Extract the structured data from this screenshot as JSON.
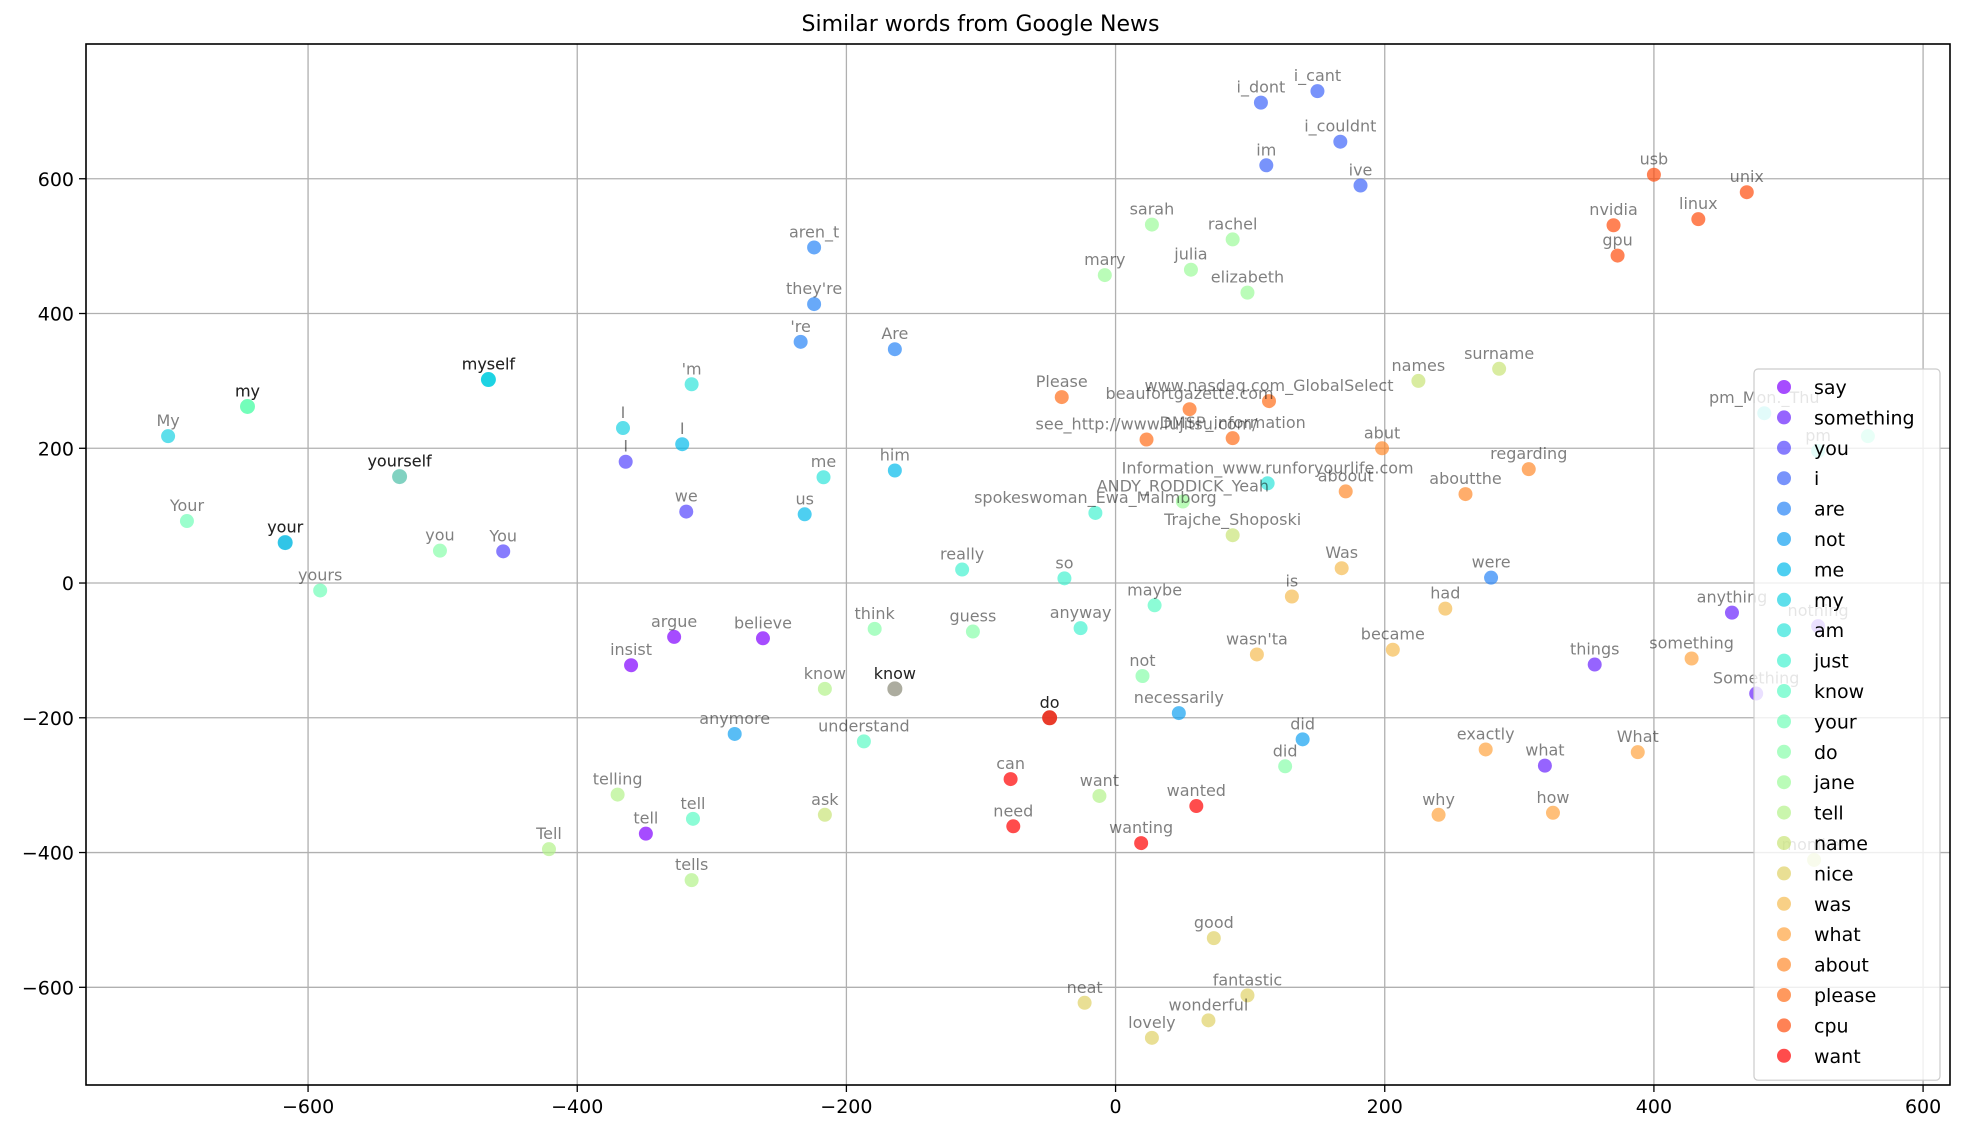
{
  "chart_data": {
    "type": "scatter",
    "title": "Similar words from Google News",
    "xlabel": "",
    "ylabel": "",
    "xlim": [
      -765,
      620
    ],
    "ylim": [
      -745,
      800
    ],
    "xticks": [
      -600,
      -400,
      -200,
      0,
      200,
      400,
      600
    ],
    "yticks": [
      -600,
      -400,
      -200,
      0,
      200,
      400,
      600
    ],
    "grid": true,
    "legend": {
      "placement": "right"
    },
    "series": [
      {
        "name": "say",
        "color": "#8000ff",
        "points": [
          {
            "x": -328,
            "y": -80,
            "label": "argue"
          },
          {
            "x": -262,
            "y": -82,
            "label": "believe"
          },
          {
            "x": -360,
            "y": -122,
            "label": "insist"
          },
          {
            "x": -349,
            "y": -372,
            "label": "tell"
          }
        ]
      },
      {
        "name": "something",
        "color": "#6a22fe",
        "points": [
          {
            "x": 458,
            "y": -44,
            "label": "anything"
          },
          {
            "x": 356,
            "y": -121,
            "label": "things"
          },
          {
            "x": 319,
            "y": -271,
            "label": "what"
          },
          {
            "x": 476,
            "y": -164,
            "label": "Something"
          },
          {
            "x": 522,
            "y": -64,
            "label": "nothing"
          }
        ]
      },
      {
        "name": "you",
        "color": "#5444fd",
        "points": [
          {
            "x": -364,
            "y": 180,
            "label": "I"
          },
          {
            "x": -319,
            "y": 106,
            "label": "we"
          },
          {
            "x": -455,
            "y": 47,
            "label": "You"
          }
        ]
      },
      {
        "name": "i",
        "color": "#3e65fa",
        "points": [
          {
            "x": 108,
            "y": 713,
            "label": "i_dont"
          },
          {
            "x": 150,
            "y": 730,
            "label": "i_cant"
          },
          {
            "x": 112,
            "y": 620,
            "label": "im"
          },
          {
            "x": 167,
            "y": 655,
            "label": "i_couldnt"
          },
          {
            "x": 182,
            "y": 590,
            "label": "ive"
          }
        ]
      },
      {
        "name": "are",
        "color": "#2884f6",
        "points": [
          {
            "x": -224,
            "y": 498,
            "label": "aren_t"
          },
          {
            "x": -224,
            "y": 414,
            "label": "they're"
          },
          {
            "x": -234,
            "y": 358,
            "label": "'re"
          },
          {
            "x": -164,
            "y": 347,
            "label": "Are"
          },
          {
            "x": 279,
            "y": 8,
            "label": "were"
          }
        ]
      },
      {
        "name": "not",
        "color": "#12a1f1",
        "points": [
          {
            "x": -283,
            "y": -224,
            "label": "anymore"
          },
          {
            "x": 47,
            "y": -193,
            "label": "necessarily"
          },
          {
            "x": 139,
            "y": -232,
            "label": "did"
          }
        ]
      },
      {
        "name": "me",
        "color": "#03bbeb",
        "points": [
          {
            "x": -322,
            "y": 206,
            "label": "I"
          },
          {
            "x": -231,
            "y": 102,
            "label": "us"
          },
          {
            "x": -164,
            "y": 167,
            "label": "him"
          },
          {
            "x": -617,
            "y": 60,
            "label": "your"
          }
        ]
      },
      {
        "name": "my",
        "color": "#19d2e3",
        "points": [
          {
            "x": -704,
            "y": 218,
            "label": "My"
          },
          {
            "x": -366,
            "y": 230,
            "label": "I"
          },
          {
            "x": -466,
            "y": 302,
            "label": "myself"
          }
        ]
      },
      {
        "name": "am",
        "color": "#2fe4da",
        "points": [
          {
            "x": -315,
            "y": 295,
            "label": "'m"
          },
          {
            "x": -217,
            "y": 157,
            "label": "me"
          },
          {
            "x": 113,
            "y": 148,
            "label": "Information_www.runforyourlife.com"
          },
          {
            "x": 482,
            "y": 252,
            "label": "pm_Mon._Thu"
          }
        ]
      },
      {
        "name": "just",
        "color": "#45f2d0",
        "points": [
          {
            "x": -114,
            "y": 20,
            "label": "really"
          },
          {
            "x": -38,
            "y": 7,
            "label": "so"
          },
          {
            "x": -26,
            "y": -67,
            "label": "anyway"
          },
          {
            "x": -15,
            "y": 104,
            "label": "spokeswoman_Ewa_Malmborg"
          },
          {
            "x": 522,
            "y": 196,
            "label": "pm"
          }
        ]
      },
      {
        "name": "know",
        "color": "#5bfbc5",
        "points": [
          {
            "x": -314,
            "y": -350,
            "label": "tell"
          },
          {
            "x": -187,
            "y": -235,
            "label": "understand"
          },
          {
            "x": 29,
            "y": -33,
            "label": "maybe"
          },
          {
            "x": 559,
            "y": 218,
            "label": ""
          }
        ]
      },
      {
        "name": "your",
        "color": "#71feb8",
        "points": [
          {
            "x": -690,
            "y": 92,
            "label": "Your"
          },
          {
            "x": -645,
            "y": 262,
            "label": "my"
          },
          {
            "x": -532,
            "y": 158,
            "label": "yourself"
          },
          {
            "x": -591,
            "y": -11,
            "label": "yours"
          }
        ]
      },
      {
        "name": "do",
        "color": "#87fea9",
        "points": [
          {
            "x": -502,
            "y": 48,
            "label": "you"
          },
          {
            "x": -179,
            "y": -68,
            "label": "think"
          },
          {
            "x": -106,
            "y": -72,
            "label": "guess"
          },
          {
            "x": 20,
            "y": -138,
            "label": "not"
          },
          {
            "x": 126,
            "y": -272,
            "label": "did"
          }
        ]
      },
      {
        "name": "jane",
        "color": "#9dfb9a",
        "points": [
          {
            "x": 27,
            "y": 532,
            "label": "sarah"
          },
          {
            "x": 87,
            "y": 510,
            "label": "rachel"
          },
          {
            "x": -8,
            "y": 457,
            "label": "mary"
          },
          {
            "x": 56,
            "y": 465,
            "label": "julia"
          },
          {
            "x": 98,
            "y": 431,
            "label": "elizabeth"
          },
          {
            "x": 50,
            "y": 121,
            "label": "ANDY_RODDICK_Yeah"
          }
        ]
      },
      {
        "name": "tell",
        "color": "#b3f28a",
        "points": [
          {
            "x": -370,
            "y": -314,
            "label": "telling"
          },
          {
            "x": -421,
            "y": -395,
            "label": "Tell"
          },
          {
            "x": -315,
            "y": -441,
            "label": "tells"
          },
          {
            "x": -216,
            "y": -157,
            "label": "know"
          },
          {
            "x": -12,
            "y": -316,
            "label": "want"
          }
        ]
      },
      {
        "name": "name",
        "color": "#c9e478",
        "points": [
          {
            "x": -216,
            "y": -344,
            "label": "ask"
          },
          {
            "x": 225,
            "y": 300,
            "label": "names"
          },
          {
            "x": 285,
            "y": 318,
            "label": "surname"
          },
          {
            "x": 87,
            "y": 71,
            "label": "Trajche_Shoposki"
          },
          {
            "x": 519,
            "y": -411,
            "label": "moniker"
          }
        ]
      },
      {
        "name": "nice",
        "color": "#dfd266",
        "points": [
          {
            "x": 73,
            "y": -527,
            "label": "good"
          },
          {
            "x": 98,
            "y": -612,
            "label": "fantastic"
          },
          {
            "x": -23,
            "y": -623,
            "label": "neat"
          },
          {
            "x": 69,
            "y": -649,
            "label": "wonderful"
          },
          {
            "x": 27,
            "y": -675,
            "label": "lovely"
          }
        ]
      },
      {
        "name": "was",
        "color": "#f5bc53",
        "points": [
          {
            "x": 131,
            "y": -20,
            "label": "is"
          },
          {
            "x": 105,
            "y": -106,
            "label": "wasn'ta"
          },
          {
            "x": 168,
            "y": 22,
            "label": "Was"
          },
          {
            "x": 206,
            "y": -99,
            "label": "became"
          },
          {
            "x": 245,
            "y": -38,
            "label": "had"
          }
        ]
      },
      {
        "name": "what",
        "color": "#ffa440",
        "points": [
          {
            "x": 240,
            "y": -344,
            "label": "why"
          },
          {
            "x": 275,
            "y": -247,
            "label": "exactly"
          },
          {
            "x": 325,
            "y": -341,
            "label": "how"
          },
          {
            "x": 388,
            "y": -251,
            "label": "What"
          },
          {
            "x": 428,
            "y": -112,
            "label": "something"
          }
        ]
      },
      {
        "name": "about",
        "color": "#ff8a2c",
        "points": [
          {
            "x": 198,
            "y": 200,
            "label": "abut"
          },
          {
            "x": 171,
            "y": 136,
            "label": "aboout"
          },
          {
            "x": 260,
            "y": 132,
            "label": "aboutthe"
          },
          {
            "x": 307,
            "y": 169,
            "label": "regarding"
          }
        ]
      },
      {
        "name": "please",
        "color": "#ff6d1a",
        "points": [
          {
            "x": -40,
            "y": 276,
            "label": "Please"
          },
          {
            "x": 55,
            "y": 258,
            "label": "beaufortgazette.com"
          },
          {
            "x": 114,
            "y": 270,
            "label": "www.nasdaq.com_GlobalSelect"
          },
          {
            "x": 23,
            "y": 213,
            "label": "see_http://www.fujitsu.com/"
          },
          {
            "x": 87,
            "y": 215,
            "label": "DMSP_information"
          }
        ]
      },
      {
        "name": "cpu",
        "color": "#ff4d0d",
        "points": [
          {
            "x": 400,
            "y": 606,
            "label": "usb"
          },
          {
            "x": 469,
            "y": 580,
            "label": "unix"
          },
          {
            "x": 370,
            "y": 531,
            "label": "nvidia"
          },
          {
            "x": 433,
            "y": 540,
            "label": "linux"
          },
          {
            "x": 373,
            "y": 486,
            "label": "gpu"
          }
        ]
      },
      {
        "name": "want",
        "color": "#ff0000",
        "points": [
          {
            "x": -78,
            "y": -291,
            "label": "can"
          },
          {
            "x": -76,
            "y": -361,
            "label": "need"
          },
          {
            "x": 60,
            "y": -331,
            "label": "wanted"
          },
          {
            "x": 19,
            "y": -386,
            "label": "wanting"
          }
        ]
      }
    ],
    "query_words": [
      {
        "x": -466,
        "y": 302,
        "label": "myself",
        "color": "#19d2e3"
      },
      {
        "x": -645,
        "y": 262,
        "label": "my",
        "color": "#71feb8"
      },
      {
        "x": -532,
        "y": 158,
        "label": "yourself",
        "color": "#7fd0c0"
      },
      {
        "x": -617,
        "y": 60,
        "label": "your",
        "color": "#2ec4e6"
      },
      {
        "x": -164,
        "y": -157,
        "label": "know",
        "color": "#a8a89a"
      },
      {
        "x": -49,
        "y": -200,
        "label": "do",
        "color": "#e83020"
      }
    ]
  }
}
